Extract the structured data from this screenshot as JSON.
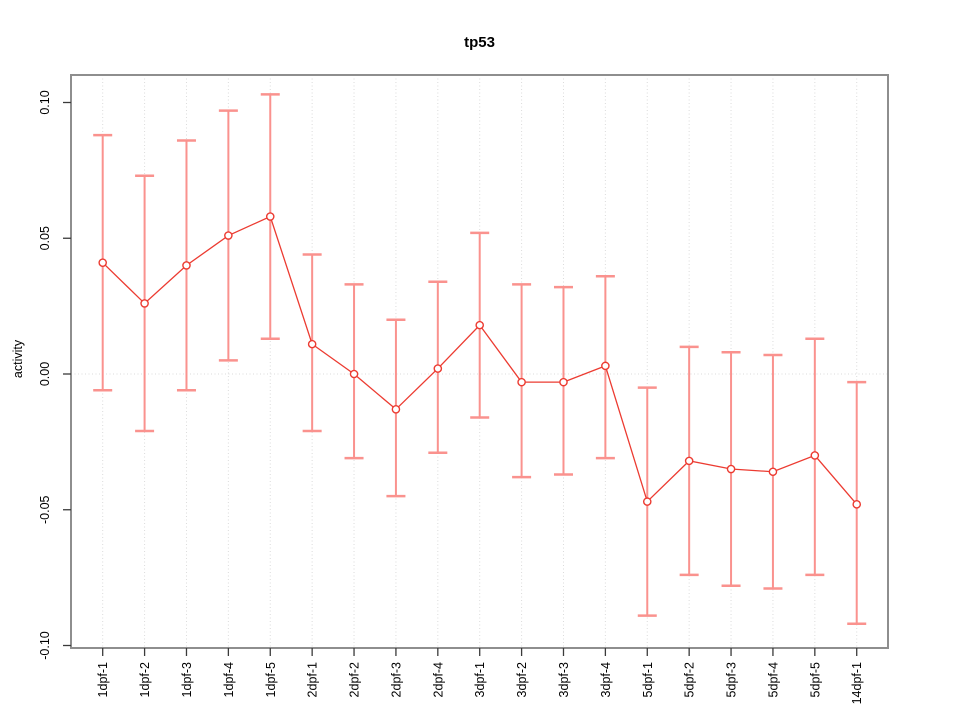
{
  "chart_data": {
    "type": "line",
    "title": "tp53",
    "xlabel": "",
    "ylabel": "activity",
    "error_bars": true,
    "legend": "none",
    "grid": "vertical dotted gridlines at each category plus dotted horizontal line at y=0",
    "categories": [
      "1dpf-1",
      "1dpf-2",
      "1dpf-3",
      "1dpf-4",
      "1dpf-5",
      "2dpf-1",
      "2dpf-2",
      "2dpf-3",
      "2dpf-4",
      "3dpf-1",
      "3dpf-2",
      "3dpf-3",
      "3dpf-4",
      "5dpf-1",
      "5dpf-2",
      "5dpf-3",
      "5dpf-4",
      "5dpf-5",
      "14dpf-1"
    ],
    "series": [
      {
        "name": "tp53 activity",
        "values": [
          0.041,
          0.026,
          0.04,
          0.051,
          0.058,
          0.011,
          0.0,
          -0.013,
          0.002,
          0.018,
          -0.003,
          -0.003,
          0.003,
          -0.047,
          -0.032,
          -0.035,
          -0.036,
          -0.03,
          -0.048
        ],
        "upper": [
          0.088,
          0.073,
          0.086,
          0.097,
          0.103,
          0.044,
          0.033,
          0.02,
          0.034,
          0.052,
          0.033,
          0.032,
          0.036,
          -0.005,
          0.01,
          0.008,
          0.007,
          0.013,
          -0.003
        ],
        "lower": [
          -0.006,
          -0.021,
          -0.006,
          0.005,
          0.013,
          -0.021,
          -0.031,
          -0.045,
          -0.029,
          -0.016,
          -0.038,
          -0.037,
          -0.031,
          -0.089,
          -0.074,
          -0.078,
          -0.079,
          -0.074,
          -0.092
        ]
      }
    ],
    "yticks": [
      0.1,
      0.05,
      0.0,
      -0.05,
      -0.1
    ],
    "ytick_labels": [
      "0.10",
      "0.05",
      "0.00",
      "-0.05",
      "-0.10"
    ],
    "ylim": [
      -0.101,
      0.11
    ],
    "colors": {
      "point_line": "#EC3B31",
      "error_bar": "#FA928E",
      "grid": "#DBDBDB",
      "box": "#8E8E8E",
      "tick": "#3A3A3A",
      "text": "#000000"
    }
  }
}
